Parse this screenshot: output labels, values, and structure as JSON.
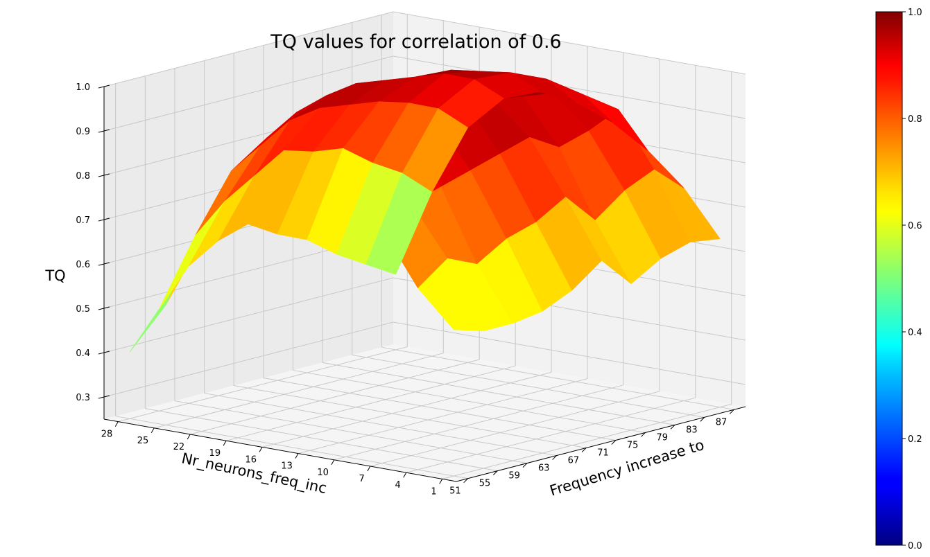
{
  "chart_data": {
    "type": "surface3d",
    "title": "TQ values for correlation of 0.6",
    "zlabel": "TQ",
    "ylabel": "Nr_neurons_freq_inc",
    "xlabel": "Frequency increase to",
    "z_ticks": [
      "0.3",
      "0.4",
      "0.5",
      "0.6",
      "0.7",
      "0.8",
      "0.9",
      "1.0"
    ],
    "y_ticks": [
      "28",
      "25",
      "22",
      "19",
      "16",
      "13",
      "10",
      "7",
      "4",
      "1"
    ],
    "x_ticks": [
      "51",
      "55",
      "59",
      "63",
      "67",
      "71",
      "75",
      "79",
      "83",
      "87"
    ],
    "zlim": [
      0.25,
      1.0
    ],
    "colormap": "jet",
    "colorbar": {
      "min": 0.0,
      "max": 1.0,
      "ticks": [
        "0.0",
        "0.2",
        "0.4",
        "0.6",
        "0.8",
        "1.0"
      ]
    },
    "x_values": [
      51,
      55,
      59,
      63,
      67,
      71,
      75,
      79,
      83,
      87
    ],
    "y_values": [
      1,
      4,
      7,
      10,
      13,
      16,
      19,
      22,
      25,
      28
    ],
    "z_values": [
      [
        0.58,
        0.56,
        0.56,
        0.57,
        0.6,
        0.65,
        0.58,
        0.62,
        0.64,
        0.63
      ],
      [
        0.66,
        0.71,
        0.68,
        0.72,
        0.74,
        0.78,
        0.71,
        0.76,
        0.79,
        0.73
      ],
      [
        0.78,
        0.82,
        0.84,
        0.86,
        0.88,
        0.9,
        0.86,
        0.88,
        0.91,
        0.8
      ],
      [
        0.84,
        0.9,
        0.95,
        0.96,
        0.98,
        0.97,
        0.96,
        0.95,
        0.93,
        0.85
      ],
      [
        0.86,
        0.93,
        0.97,
        0.99,
        0.99,
        0.99,
        0.98,
        0.97,
        0.95,
        0.88
      ],
      [
        0.85,
        0.94,
        0.98,
        0.99,
        1.0,
        0.99,
        0.99,
        0.97,
        0.95,
        0.89
      ],
      [
        0.8,
        0.91,
        0.95,
        0.97,
        0.98,
        0.97,
        0.96,
        0.95,
        0.92,
        0.86
      ],
      [
        0.68,
        0.82,
        0.86,
        0.9,
        0.91,
        0.9,
        0.89,
        0.87,
        0.84,
        0.78
      ],
      [
        0.52,
        0.66,
        0.72,
        0.76,
        0.8,
        0.78,
        0.77,
        0.72,
        0.68,
        0.62
      ],
      [
        0.4,
        0.48,
        0.56,
        0.6,
        0.62,
        0.58,
        0.55,
        0.5,
        0.46,
        0.42
      ]
    ],
    "grid": true
  }
}
